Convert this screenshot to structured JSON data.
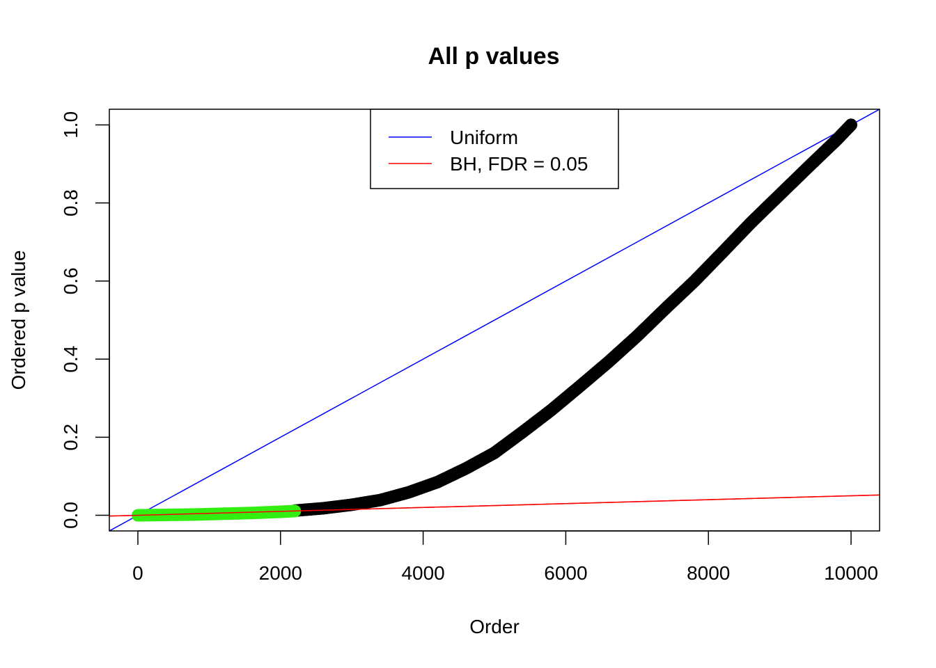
{
  "chart_data": {
    "type": "scatter",
    "title": "All p values",
    "xlabel": "Order",
    "ylabel": "Ordered p value",
    "xlim": [
      -400,
      10400
    ],
    "ylim": [
      -0.04,
      1.04
    ],
    "x_ticks": [
      0,
      2000,
      4000,
      6000,
      8000,
      10000
    ],
    "x_tick_labels": [
      "0",
      "2000",
      "4000",
      "6000",
      "8000",
      "10000"
    ],
    "y_ticks": [
      0.0,
      0.2,
      0.4,
      0.6,
      0.8,
      1.0
    ],
    "y_tick_labels": [
      "0.0",
      "0.2",
      "0.4",
      "0.6",
      "0.8",
      "1.0"
    ],
    "grid": false,
    "legend_position": "top-center",
    "series": [
      {
        "name": "Uniform",
        "type": "line",
        "color": "#0000ff",
        "x": [
          -400,
          10400
        ],
        "y": [
          -0.04,
          1.04
        ]
      },
      {
        "name": "BH, FDR = 0.05",
        "type": "line",
        "color": "#ff0000",
        "x": [
          -400,
          10400
        ],
        "y": [
          -0.002,
          0.052
        ]
      },
      {
        "type": "points",
        "color": "#000000",
        "x": [
          2200,
          2600,
          3000,
          3400,
          3800,
          4200,
          4600,
          5000,
          5400,
          5800,
          6200,
          6600,
          7000,
          7400,
          7800,
          8200,
          8600,
          9000,
          9400,
          9800,
          10000
        ],
        "y": [
          0.012,
          0.018,
          0.027,
          0.039,
          0.059,
          0.085,
          0.12,
          0.16,
          0.214,
          0.27,
          0.331,
          0.393,
          0.459,
          0.53,
          0.599,
          0.674,
          0.75,
          0.821,
          0.892,
          0.962,
          1.0
        ]
      },
      {
        "type": "points",
        "color": "#33ee11",
        "x": [
          0,
          400,
          800,
          1200,
          1600,
          2000,
          2200
        ],
        "y": [
          0.0,
          0.001,
          0.002,
          0.004,
          0.006,
          0.009,
          0.011
        ]
      }
    ]
  }
}
